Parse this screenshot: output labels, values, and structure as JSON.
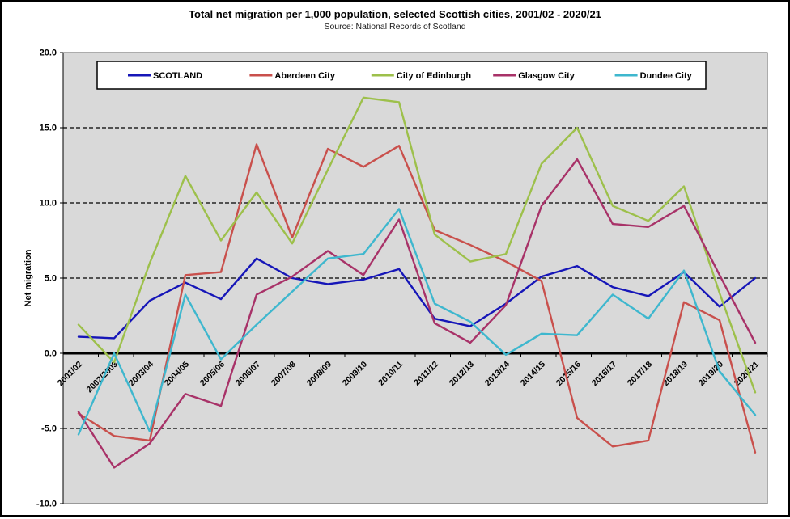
{
  "title": "Total net migration per 1,000 population, selected Scottish cities, 2001/02 - 2020/21",
  "subtitle": "Source: National Records of Scotland",
  "chart_data": {
    "type": "line",
    "x": [
      "2001/02",
      "2002/2003",
      "2003/04",
      "2004/05",
      "2005/06",
      "2006/07",
      "2007/08",
      "2008/09",
      "2009/10",
      "2010/11",
      "2011/12",
      "2012/13",
      "2013/14",
      "2014/15",
      "2015/16",
      "2016/17",
      "2017/18",
      "2018/19",
      "2019/20",
      "2020/21"
    ],
    "ylabel": "Net migration",
    "ylim": [
      -10,
      20
    ],
    "ytick_step": 5,
    "ytick_labels": [
      "20.0",
      "15.0",
      "10.0",
      "5.0",
      "0.0",
      "-5.0",
      "-10.0"
    ],
    "grid": "horizontal dashed at -5, 5, 10, 15; bold solid line at 0",
    "legend_position": "top-inside-horizontal",
    "plot_bg_color": "#D9D9D9",
    "series": [
      {
        "name": "SCOTLAND",
        "color": "#1616B8",
        "values": [
          1.1,
          1.0,
          3.5,
          4.7,
          3.6,
          6.3,
          5.0,
          4.6,
          4.9,
          5.6,
          2.3,
          1.8,
          3.3,
          5.1,
          5.8,
          4.4,
          3.8,
          5.4,
          3.1,
          5.0
        ]
      },
      {
        "name": "Aberdeen City",
        "color": "#C9504C",
        "values": [
          -4.0,
          -5.5,
          -5.8,
          5.2,
          5.4,
          13.9,
          7.7,
          13.6,
          12.4,
          13.8,
          8.2,
          7.2,
          6.1,
          4.8,
          -4.3,
          -6.2,
          -5.8,
          3.4,
          2.2,
          -6.6
        ]
      },
      {
        "name": "City of Edinburgh",
        "color": "#9DC04B",
        "values": [
          1.9,
          -0.6,
          6.0,
          11.8,
          7.5,
          10.7,
          7.3,
          12.2,
          17.0,
          16.7,
          7.9,
          6.1,
          6.6,
          12.6,
          15.0,
          9.8,
          8.8,
          11.1,
          4.0,
          -2.6
        ]
      },
      {
        "name": "Glasgow City",
        "color": "#A83268",
        "values": [
          -3.9,
          -7.6,
          -6.0,
          -2.7,
          -3.5,
          3.9,
          5.1,
          6.8,
          5.2,
          8.9,
          2.0,
          0.7,
          3.2,
          9.8,
          12.9,
          8.6,
          8.4,
          9.8,
          5.2,
          0.7
        ]
      },
      {
        "name": "Dundee City",
        "color": "#3EB7CE",
        "values": [
          -5.4,
          0.0,
          -5.2,
          3.9,
          -0.4,
          1.9,
          4.1,
          6.3,
          6.6,
          9.6,
          3.3,
          2.1,
          -0.1,
          1.3,
          1.2,
          3.9,
          2.3,
          5.5,
          -1.2,
          -4.1
        ]
      }
    ]
  }
}
